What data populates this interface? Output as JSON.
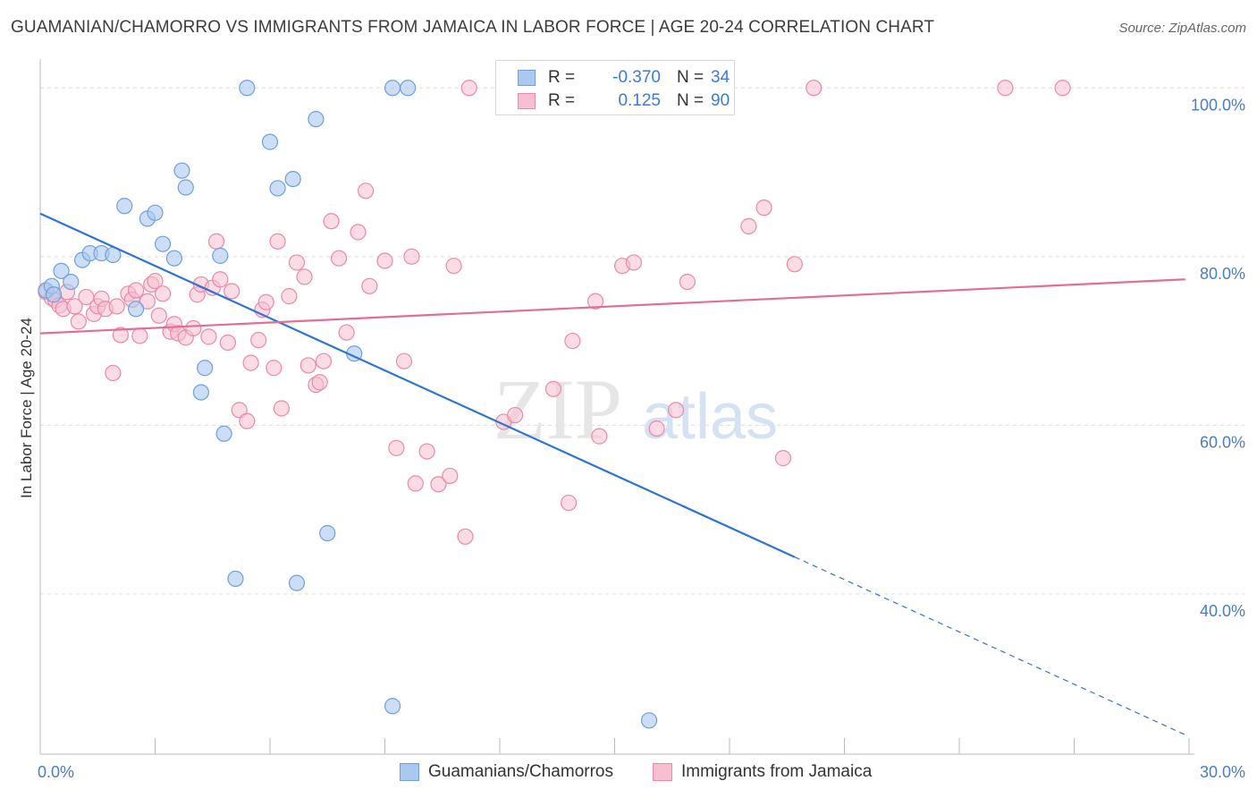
{
  "header": {
    "title": "GUAMANIAN/CHAMORRO VS IMMIGRANTS FROM JAMAICA IN LABOR FORCE | AGE 20-24 CORRELATION CHART",
    "source": "Source: ZipAtlas.com"
  },
  "watermark": {
    "zip": "ZIP",
    "atlas": "atlas"
  },
  "legend": {
    "rows": [
      {
        "r_label": "R =",
        "r_value": "-0.370",
        "n_label": "N =",
        "n_value": "34"
      },
      {
        "r_label": "R =",
        "r_value": "0.125",
        "n_label": "N =",
        "n_value": "90"
      }
    ]
  },
  "bottom_legend": {
    "series1": "Guamanians/Chamorros",
    "series2": "Immigrants from Jamaica"
  },
  "colors": {
    "blue_fill": "#aac8f0",
    "blue_stroke": "#6f9fdc",
    "blue_line": "#2f74d0",
    "pink_fill": "#f8bfd0",
    "pink_stroke": "#e98aa8",
    "pink_line": "#e46d98",
    "axis_label": "#4a7cc9",
    "grid": "#dddddd"
  },
  "chart_data": {
    "type": "scatter",
    "title": "GUAMANIAN/CHAMORRO VS IMMIGRANTS FROM JAMAICA IN LABOR FORCE | AGE 20-24 CORRELATION CHART",
    "xlabel": "",
    "ylabel": "In Labor Force | Age 20-24",
    "xlim": [
      0,
      30
    ],
    "ylim": [
      21,
      103
    ],
    "x_tick_labels": [
      "0.0%",
      "30.0%"
    ],
    "y_ticks": [
      40,
      60,
      80,
      100
    ],
    "y_tick_labels": [
      "40.0%",
      "60.0%",
      "80.0%",
      "100.0%"
    ],
    "grid": true,
    "series": [
      {
        "name": "Guamanians/Chamorros",
        "R": -0.37,
        "N": 34,
        "points": [
          [
            0.15,
            76.0
          ],
          [
            0.3,
            76.5
          ],
          [
            0.35,
            75.5
          ],
          [
            0.55,
            78.3
          ],
          [
            0.8,
            77.0
          ],
          [
            1.1,
            79.6
          ],
          [
            1.3,
            80.4
          ],
          [
            1.6,
            80.4
          ],
          [
            1.9,
            80.2
          ],
          [
            2.2,
            86.0
          ],
          [
            2.5,
            73.8
          ],
          [
            2.8,
            84.5
          ],
          [
            3.0,
            85.2
          ],
          [
            3.2,
            81.5
          ],
          [
            3.5,
            79.8
          ],
          [
            3.7,
            90.2
          ],
          [
            3.8,
            88.2
          ],
          [
            4.2,
            63.9
          ],
          [
            4.3,
            66.8
          ],
          [
            4.7,
            80.1
          ],
          [
            4.8,
            59.0
          ],
          [
            5.1,
            41.8
          ],
          [
            5.4,
            100.0
          ],
          [
            6.0,
            93.6
          ],
          [
            6.2,
            88.1
          ],
          [
            6.6,
            89.2
          ],
          [
            6.7,
            41.3
          ],
          [
            7.2,
            96.3
          ],
          [
            7.5,
            47.2
          ],
          [
            8.2,
            68.5
          ],
          [
            9.2,
            26.7
          ],
          [
            9.2,
            100.0
          ],
          [
            9.6,
            100.0
          ],
          [
            15.9,
            25.0
          ]
        ],
        "trend": {
          "x0": 0.0,
          "y0": 85.1,
          "x_solid_end": 19.7,
          "x1": 29.9,
          "y1": 23.3
        }
      },
      {
        "name": "Immigrants from Jamaica",
        "R": 0.125,
        "N": 90,
        "points": [
          [
            0.15,
            75.8
          ],
          [
            0.3,
            75.1
          ],
          [
            0.4,
            74.8
          ],
          [
            0.5,
            74.2
          ],
          [
            0.6,
            73.8
          ],
          [
            0.7,
            75.8
          ],
          [
            0.9,
            74.1
          ],
          [
            1.0,
            72.3
          ],
          [
            1.2,
            75.2
          ],
          [
            1.4,
            73.2
          ],
          [
            1.5,
            74.1
          ],
          [
            1.6,
            75.0
          ],
          [
            1.7,
            73.8
          ],
          [
            1.9,
            66.2
          ],
          [
            2.0,
            74.1
          ],
          [
            2.1,
            70.7
          ],
          [
            2.3,
            75.6
          ],
          [
            2.4,
            74.9
          ],
          [
            2.5,
            76.0
          ],
          [
            2.6,
            70.6
          ],
          [
            2.8,
            74.7
          ],
          [
            2.9,
            76.7
          ],
          [
            3.0,
            77.1
          ],
          [
            3.1,
            73.0
          ],
          [
            3.2,
            75.6
          ],
          [
            3.4,
            71.1
          ],
          [
            3.5,
            72.0
          ],
          [
            3.6,
            70.9
          ],
          [
            3.8,
            70.4
          ],
          [
            4.0,
            71.5
          ],
          [
            4.1,
            75.5
          ],
          [
            4.2,
            76.7
          ],
          [
            4.4,
            70.5
          ],
          [
            4.5,
            76.3
          ],
          [
            4.6,
            81.8
          ],
          [
            4.7,
            77.3
          ],
          [
            4.9,
            69.8
          ],
          [
            5.0,
            75.9
          ],
          [
            5.2,
            61.8
          ],
          [
            5.4,
            60.5
          ],
          [
            5.5,
            67.4
          ],
          [
            5.7,
            70.1
          ],
          [
            5.8,
            73.7
          ],
          [
            5.9,
            74.6
          ],
          [
            6.1,
            66.8
          ],
          [
            6.2,
            81.8
          ],
          [
            6.3,
            62.0
          ],
          [
            6.5,
            75.3
          ],
          [
            6.7,
            79.3
          ],
          [
            6.9,
            77.6
          ],
          [
            7.0,
            67.1
          ],
          [
            7.2,
            64.8
          ],
          [
            7.3,
            65.1
          ],
          [
            7.4,
            67.6
          ],
          [
            7.6,
            84.2
          ],
          [
            7.8,
            79.8
          ],
          [
            8.0,
            71.0
          ],
          [
            8.3,
            82.9
          ],
          [
            8.5,
            87.8
          ],
          [
            8.6,
            76.5
          ],
          [
            9.0,
            79.5
          ],
          [
            9.3,
            57.3
          ],
          [
            9.5,
            67.6
          ],
          [
            9.7,
            80.0
          ],
          [
            9.8,
            53.1
          ],
          [
            10.1,
            56.9
          ],
          [
            10.4,
            53.0
          ],
          [
            10.7,
            54.0
          ],
          [
            10.8,
            78.9
          ],
          [
            11.1,
            46.8
          ],
          [
            11.2,
            100.0
          ],
          [
            12.1,
            60.4
          ],
          [
            12.4,
            61.2
          ],
          [
            13.4,
            64.3
          ],
          [
            13.8,
            50.8
          ],
          [
            13.9,
            70.0
          ],
          [
            14.5,
            74.7
          ],
          [
            14.6,
            58.7
          ],
          [
            15.2,
            78.9
          ],
          [
            15.5,
            79.3
          ],
          [
            16.1,
            59.6
          ],
          [
            16.6,
            61.8
          ],
          [
            16.9,
            77.0
          ],
          [
            18.5,
            83.6
          ],
          [
            18.9,
            85.8
          ],
          [
            19.4,
            56.1
          ],
          [
            19.7,
            79.1
          ],
          [
            20.2,
            100.0
          ],
          [
            25.2,
            100.0
          ],
          [
            26.7,
            100.0
          ]
        ],
        "trend": {
          "x0": 0.0,
          "y0": 70.9,
          "x1": 29.9,
          "y1": 77.3
        }
      }
    ]
  }
}
